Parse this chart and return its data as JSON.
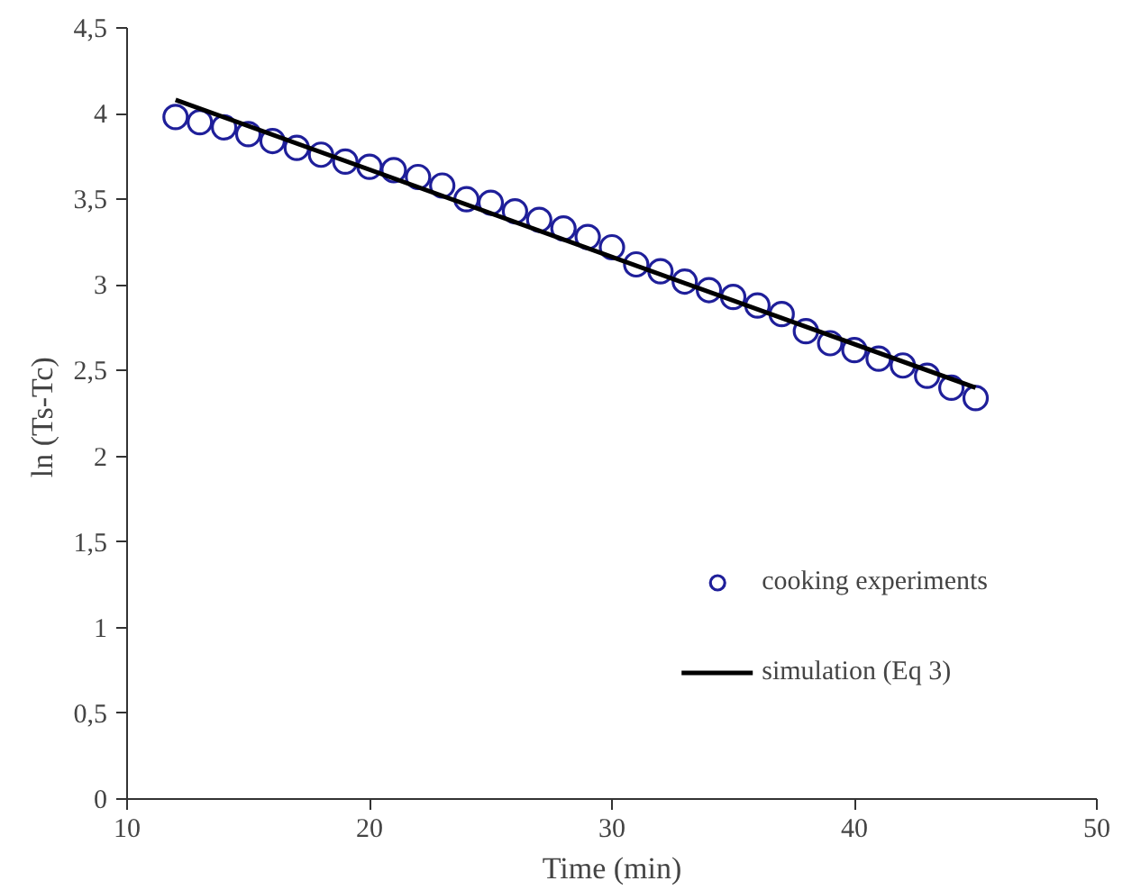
{
  "chart_data": {
    "type": "scatter",
    "xlabel": "Time (min)",
    "ylabel": "ln  (Ts-Tc)",
    "xlim": [
      10,
      50
    ],
    "xticks": [
      10,
      20,
      30,
      40,
      50
    ],
    "ylim": [
      0,
      4.5
    ],
    "yticks": [
      0,
      {
        "value": 0.5,
        "label": "0,5"
      },
      1,
      {
        "value": 1.5,
        "label": "1,5"
      },
      2,
      {
        "value": 2.5,
        "label": "2,5"
      },
      3,
      {
        "value": 3.5,
        "label": "3,5"
      },
      4,
      {
        "value": 4.5,
        "label": "4,5"
      }
    ],
    "grid": false,
    "legend": "bottom right",
    "series": [
      {
        "name": "cooking experiments",
        "color": "#1f1f9a",
        "marker": "circle",
        "x": [
          12,
          13,
          14,
          15,
          16,
          17,
          18,
          19,
          20,
          21,
          22,
          23,
          24,
          25,
          26,
          27,
          28,
          29,
          30,
          31,
          32,
          33,
          34,
          35,
          36,
          37,
          38,
          39,
          40,
          41,
          42,
          43,
          44,
          45
        ],
        "values": [
          3.98,
          3.95,
          3.92,
          3.88,
          3.84,
          3.8,
          3.76,
          3.72,
          3.69,
          3.67,
          3.63,
          3.58,
          3.5,
          3.48,
          3.43,
          3.38,
          3.33,
          3.28,
          3.22,
          3.12,
          3.08,
          3.02,
          2.97,
          2.93,
          2.88,
          2.83,
          2.73,
          2.66,
          2.62,
          2.57,
          2.53,
          2.47,
          2.4,
          2.34
        ]
      },
      {
        "name": "simulation (Eq 3)",
        "color": "#000000",
        "type": "line",
        "line_style": "solid",
        "x": [
          12,
          45
        ],
        "values": [
          4.08,
          2.4
        ]
      }
    ]
  }
}
